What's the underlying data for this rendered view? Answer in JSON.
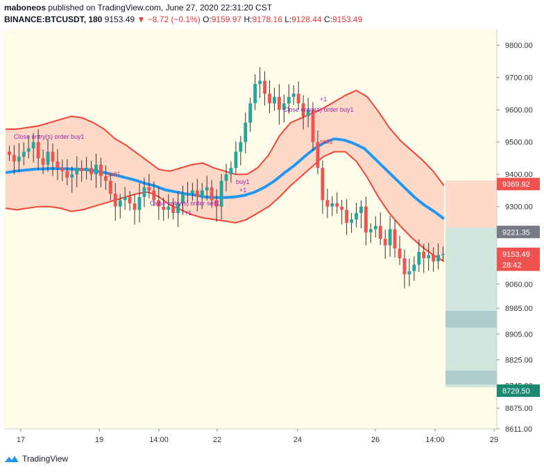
{
  "header": {
    "publisher": "maboneos",
    "published_text": "published on TradingView.com, June 27, 2020 22:31:20 CST",
    "symbol": "BINANCE:BTCUSDT, 180",
    "last": "9153.49",
    "arrow": "▼",
    "change": "−8.72 (−0.1%)",
    "o_label": "O:",
    "o_value": "9159.97",
    "h_label": "H:",
    "h_value": "9178.16",
    "l_label": "L:",
    "l_value": "9128.44",
    "c_label": "C:",
    "c_value": "9153.49"
  },
  "footer": {
    "brand": "TradingView",
    "logo_icon": "tradingview-logo-icon"
  },
  "colors": {
    "background": "#fffdea",
    "up": "#26a69a",
    "down": "#ef5350",
    "midline": "#2196f3",
    "band_red": "#f44336",
    "band_green": "#4caf50",
    "fill_red": "#ffccbc",
    "fill_green": "#c8e6c9"
  },
  "chart_data": {
    "type": "line",
    "title": "",
    "y_scale": "linear",
    "ylim": [
      8611,
      9850
    ],
    "grid": false,
    "y_ticks": [
      "9800.00",
      "9700.00",
      "9600.00",
      "9500.00",
      "9400.00",
      "9300.00",
      "9221.35",
      "9153.49",
      "9060.00",
      "8985.00",
      "8905.00",
      "8825.00",
      "8745.00",
      "8675.00",
      "8611.00"
    ],
    "x_tick_labels": [
      "17",
      "19",
      "14:00",
      "22",
      "24",
      "26",
      "14:00",
      "29"
    ],
    "price_labels": [
      {
        "text": "9369.92",
        "value": 9369.92,
        "kind": "red"
      },
      {
        "text": "9221.35",
        "value": 9221.35,
        "kind": "gray"
      },
      {
        "text": "9153.49",
        "value": 9153.49,
        "kind": "red"
      },
      {
        "text": "28:42",
        "value": 9120,
        "kind": "red"
      },
      {
        "text": "8729.50",
        "value": 8729.5,
        "kind": "green"
      }
    ],
    "close_series": [
      9460,
      9440,
      9455,
      9470,
      9480,
      9500,
      9450,
      9430,
      9470,
      9440,
      9420,
      9410,
      9390,
      9400,
      9420,
      9410,
      9420,
      9400,
      9430,
      9395,
      9380,
      9340,
      9300,
      9320,
      9330,
      9310,
      9290,
      9330,
      9360,
      9350,
      9320,
      9300,
      9290,
      9300,
      9280,
      9310,
      9340,
      9340,
      9350,
      9330,
      9350,
      9360,
      9320,
      9300,
      9380,
      9400,
      9420,
      9470,
      9500,
      9560,
      9620,
      9680,
      9690,
      9650,
      9620,
      9640,
      9600,
      9620,
      9640,
      9650,
      9620,
      9580,
      9600,
      9500,
      9420,
      9320,
      9300,
      9310,
      9300,
      9290,
      9250,
      9260,
      9280,
      9300,
      9220,
      9230,
      9240,
      9200,
      9180,
      9230,
      9170,
      9140,
      9090,
      9100,
      9120,
      9160,
      9140,
      9150,
      9130,
      9150,
      9153
    ],
    "band_mid": [
      9405,
      9410,
      9413,
      9416,
      9417,
      9418,
      9417,
      9416,
      9415,
      9410,
      9405,
      9398,
      9390,
      9382,
      9372,
      9364,
      9352,
      9346,
      9340,
      9336,
      9330,
      9328,
      9328,
      9330,
      9335,
      9345,
      9360,
      9380,
      9405,
      9428,
      9455,
      9480,
      9498,
      9510,
      9506,
      9495,
      9480,
      9450,
      9420,
      9390,
      9360,
      9330,
      9305,
      9285,
      9262
    ],
    "band_upper": [
      9540,
      9540,
      9545,
      9550,
      9560,
      9570,
      9580,
      9575,
      9560,
      9540,
      9510,
      9490,
      9465,
      9440,
      9415,
      9410,
      9420,
      9430,
      9435,
      9420,
      9410,
      9400,
      9400,
      9420,
      9460,
      9520,
      9560,
      9575,
      9590,
      9605,
      9625,
      9645,
      9660,
      9640,
      9595,
      9545,
      9505,
      9475,
      9445,
      9410,
      9365
    ],
    "band_lower": [
      9295,
      9290,
      9295,
      9300,
      9300,
      9295,
      9285,
      9290,
      9300,
      9310,
      9320,
      9330,
      9340,
      9345,
      9330,
      9305,
      9290,
      9275,
      9265,
      9260,
      9255,
      9250,
      9260,
      9280,
      9300,
      9330,
      9365,
      9395,
      9425,
      9455,
      9470,
      9470,
      9440,
      9390,
      9330,
      9280,
      9240,
      9205,
      9175,
      9150,
      9130
    ],
    "annotations": [
      {
        "text": "Close entry(s) order buy1",
        "series": "close"
      },
      {
        "text": "sell1"
      },
      {
        "text": "Close entry(s) order sell1"
      },
      {
        "text": "+1"
      },
      {
        "text": "buy1"
      },
      {
        "text": "+1"
      },
      {
        "text": "Close entry(s) order buy1"
      },
      {
        "text": "+1"
      },
      {
        "text": "sell1"
      }
    ]
  }
}
